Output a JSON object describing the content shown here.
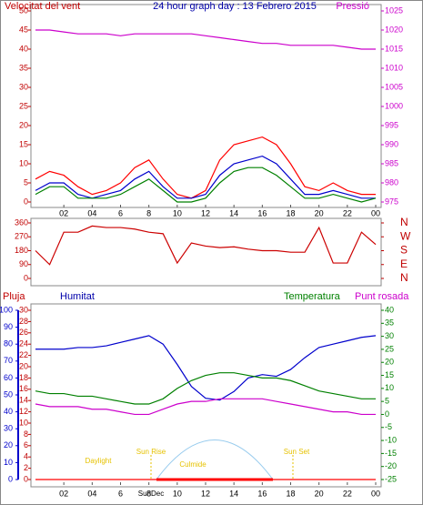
{
  "chart_data": [
    {
      "type": "line",
      "title": "24 hour graph day : 13 Febrero 2015",
      "y_label": "Velocitat del vent",
      "y2_label": "Pressió",
      "x": [
        0,
        1,
        2,
        3,
        4,
        5,
        6,
        7,
        8,
        9,
        10,
        11,
        12,
        13,
        14,
        15,
        16,
        17,
        18,
        19,
        20,
        21,
        22,
        23,
        24
      ],
      "xlim": [
        0,
        24
      ],
      "xticks": [
        {
          "value": 2,
          "label": "02"
        },
        {
          "value": 4,
          "label": "04"
        },
        6,
        8,
        10,
        12,
        14,
        16,
        18,
        20,
        22,
        {
          "value": 24,
          "label": "00"
        }
      ],
      "ylim": [
        0,
        50
      ],
      "yticks": [
        0,
        5,
        10,
        15,
        20,
        25,
        30,
        35,
        40,
        45,
        50
      ],
      "ycolor": "#c00000",
      "y2lim": [
        975,
        1025
      ],
      "y2ticks": [
        975,
        980,
        985,
        990,
        995,
        1000,
        1005,
        1010,
        1015,
        1020,
        1025
      ],
      "y2color": "#cc00cc",
      "series": [
        {
          "color": "#ff0000",
          "values": [
            6,
            8,
            7,
            4,
            2,
            3,
            5,
            9,
            11,
            6,
            2,
            1,
            3,
            11,
            15,
            16,
            17,
            15,
            10,
            4,
            3,
            5,
            3,
            2,
            2
          ]
        },
        {
          "color": "#0000cc",
          "values": [
            3,
            5,
            5,
            2,
            1,
            2,
            3,
            6,
            8,
            4,
            1,
            1,
            2,
            7,
            10,
            11,
            12,
            10,
            6,
            2,
            2,
            3,
            2,
            1,
            1
          ]
        },
        {
          "color": "#008000",
          "values": [
            2,
            4,
            4,
            1,
            1,
            1,
            2,
            4,
            6,
            3,
            0,
            0,
            1,
            5,
            8,
            9,
            9,
            7,
            4,
            1,
            1,
            2,
            1,
            0,
            1
          ]
        },
        {
          "color": "#cc00cc",
          "axis": "y2",
          "values": [
            1020,
            1020,
            1019.5,
            1019,
            1019,
            1019,
            1018.5,
            1019,
            1019,
            1019,
            1019,
            1019,
            1018.5,
            1018,
            1017.5,
            1017,
            1016.5,
            1016.5,
            1016,
            1016,
            1016,
            1016,
            1015.5,
            1015,
            1015
          ]
        }
      ]
    },
    {
      "type": "line",
      "x": [
        0,
        1,
        2,
        3,
        4,
        5,
        6,
        7,
        8,
        9,
        10,
        11,
        12,
        13,
        14,
        15,
        16,
        17,
        18,
        19,
        20,
        21,
        22,
        23,
        24
      ],
      "xlim": [
        0,
        24
      ],
      "ylim": [
        0,
        360
      ],
      "yticks": [
        0,
        90,
        180,
        270,
        360
      ],
      "ycolor": "#c00000",
      "y2lim": [
        0,
        360
      ],
      "y2ticks": [
        {
          "value": 360,
          "label": "N"
        },
        {
          "value": 270,
          "label": "W"
        },
        {
          "value": 180,
          "label": "S"
        },
        {
          "value": 90,
          "label": "E"
        },
        {
          "value": 0,
          "label": "N"
        }
      ],
      "y2color": "#c00000",
      "series": [
        {
          "color": "#cc0000",
          "values": [
            180,
            90,
            300,
            300,
            340,
            330,
            330,
            320,
            300,
            290,
            100,
            230,
            210,
            200,
            205,
            190,
            180,
            180,
            170,
            170,
            330,
            100,
            100,
            300,
            220
          ]
        }
      ]
    },
    {
      "type": "line",
      "y_label": "Pluja",
      "y3_label": "Humitat",
      "y2_label": "Temperatura",
      "y2b_label": "Punt rosada",
      "annotations": [
        "Daylight",
        "Sun Rise",
        "Culmide",
        "Sun Set",
        "SunDec"
      ],
      "x": [
        0,
        1,
        2,
        3,
        4,
        5,
        6,
        7,
        8,
        9,
        10,
        11,
        12,
        13,
        14,
        15,
        16,
        17,
        18,
        19,
        20,
        21,
        22,
        23,
        24
      ],
      "xlim": [
        0,
        24
      ],
      "xticks": [
        {
          "value": 2,
          "label": "02"
        },
        {
          "value": 4,
          "label": "04"
        },
        6,
        8,
        10,
        12,
        14,
        16,
        18,
        20,
        22,
        {
          "value": 24,
          "label": "00"
        }
      ],
      "ylim": [
        0,
        30
      ],
      "yticks": [
        0,
        2,
        4,
        6,
        8,
        10,
        12,
        14,
        16,
        18,
        20,
        22,
        24,
        26,
        28,
        30
      ],
      "ycolor": "#c00000",
      "y3lim": [
        0,
        100
      ],
      "y3ticks": [
        0,
        10,
        20,
        30,
        40,
        50,
        60,
        70,
        80,
        90,
        100
      ],
      "y3color": "#0000cc",
      "y2lim": [
        -25,
        40
      ],
      "y2ticks": [
        -25,
        -20,
        -15,
        -10,
        -5,
        0,
        5,
        10,
        15,
        20,
        25,
        30,
        35,
        40
      ],
      "y2color": "#008000",
      "series": [
        {
          "color": "#ff0000",
          "values": [
            0,
            0,
            0,
            0,
            0,
            0,
            0,
            0,
            0,
            0,
            0,
            0,
            0,
            0,
            0,
            0,
            0,
            0,
            0,
            0,
            0,
            0,
            0,
            0,
            0
          ]
        },
        {
          "color": "#0000cc",
          "axis": "y3",
          "values": [
            77,
            77,
            77,
            78,
            78,
            79,
            81,
            83,
            85,
            80,
            68,
            55,
            48,
            47,
            52,
            60,
            62,
            61,
            65,
            72,
            78,
            80,
            82,
            84,
            85
          ]
        },
        {
          "color": "#008000",
          "axis": "y2",
          "values": [
            9,
            8,
            8,
            7,
            7,
            6,
            5,
            4,
            4,
            6,
            10,
            13,
            15,
            16,
            16,
            15,
            14,
            14,
            13,
            11,
            9,
            8,
            7,
            6,
            6
          ]
        },
        {
          "color": "#cc00cc",
          "axis": "y2",
          "values": [
            4,
            3,
            3,
            3,
            2,
            2,
            1,
            0,
            0,
            2,
            4,
            5,
            5,
            6,
            6,
            6,
            6,
            5,
            4,
            3,
            2,
            1,
            1,
            0,
            0
          ]
        }
      ]
    }
  ]
}
